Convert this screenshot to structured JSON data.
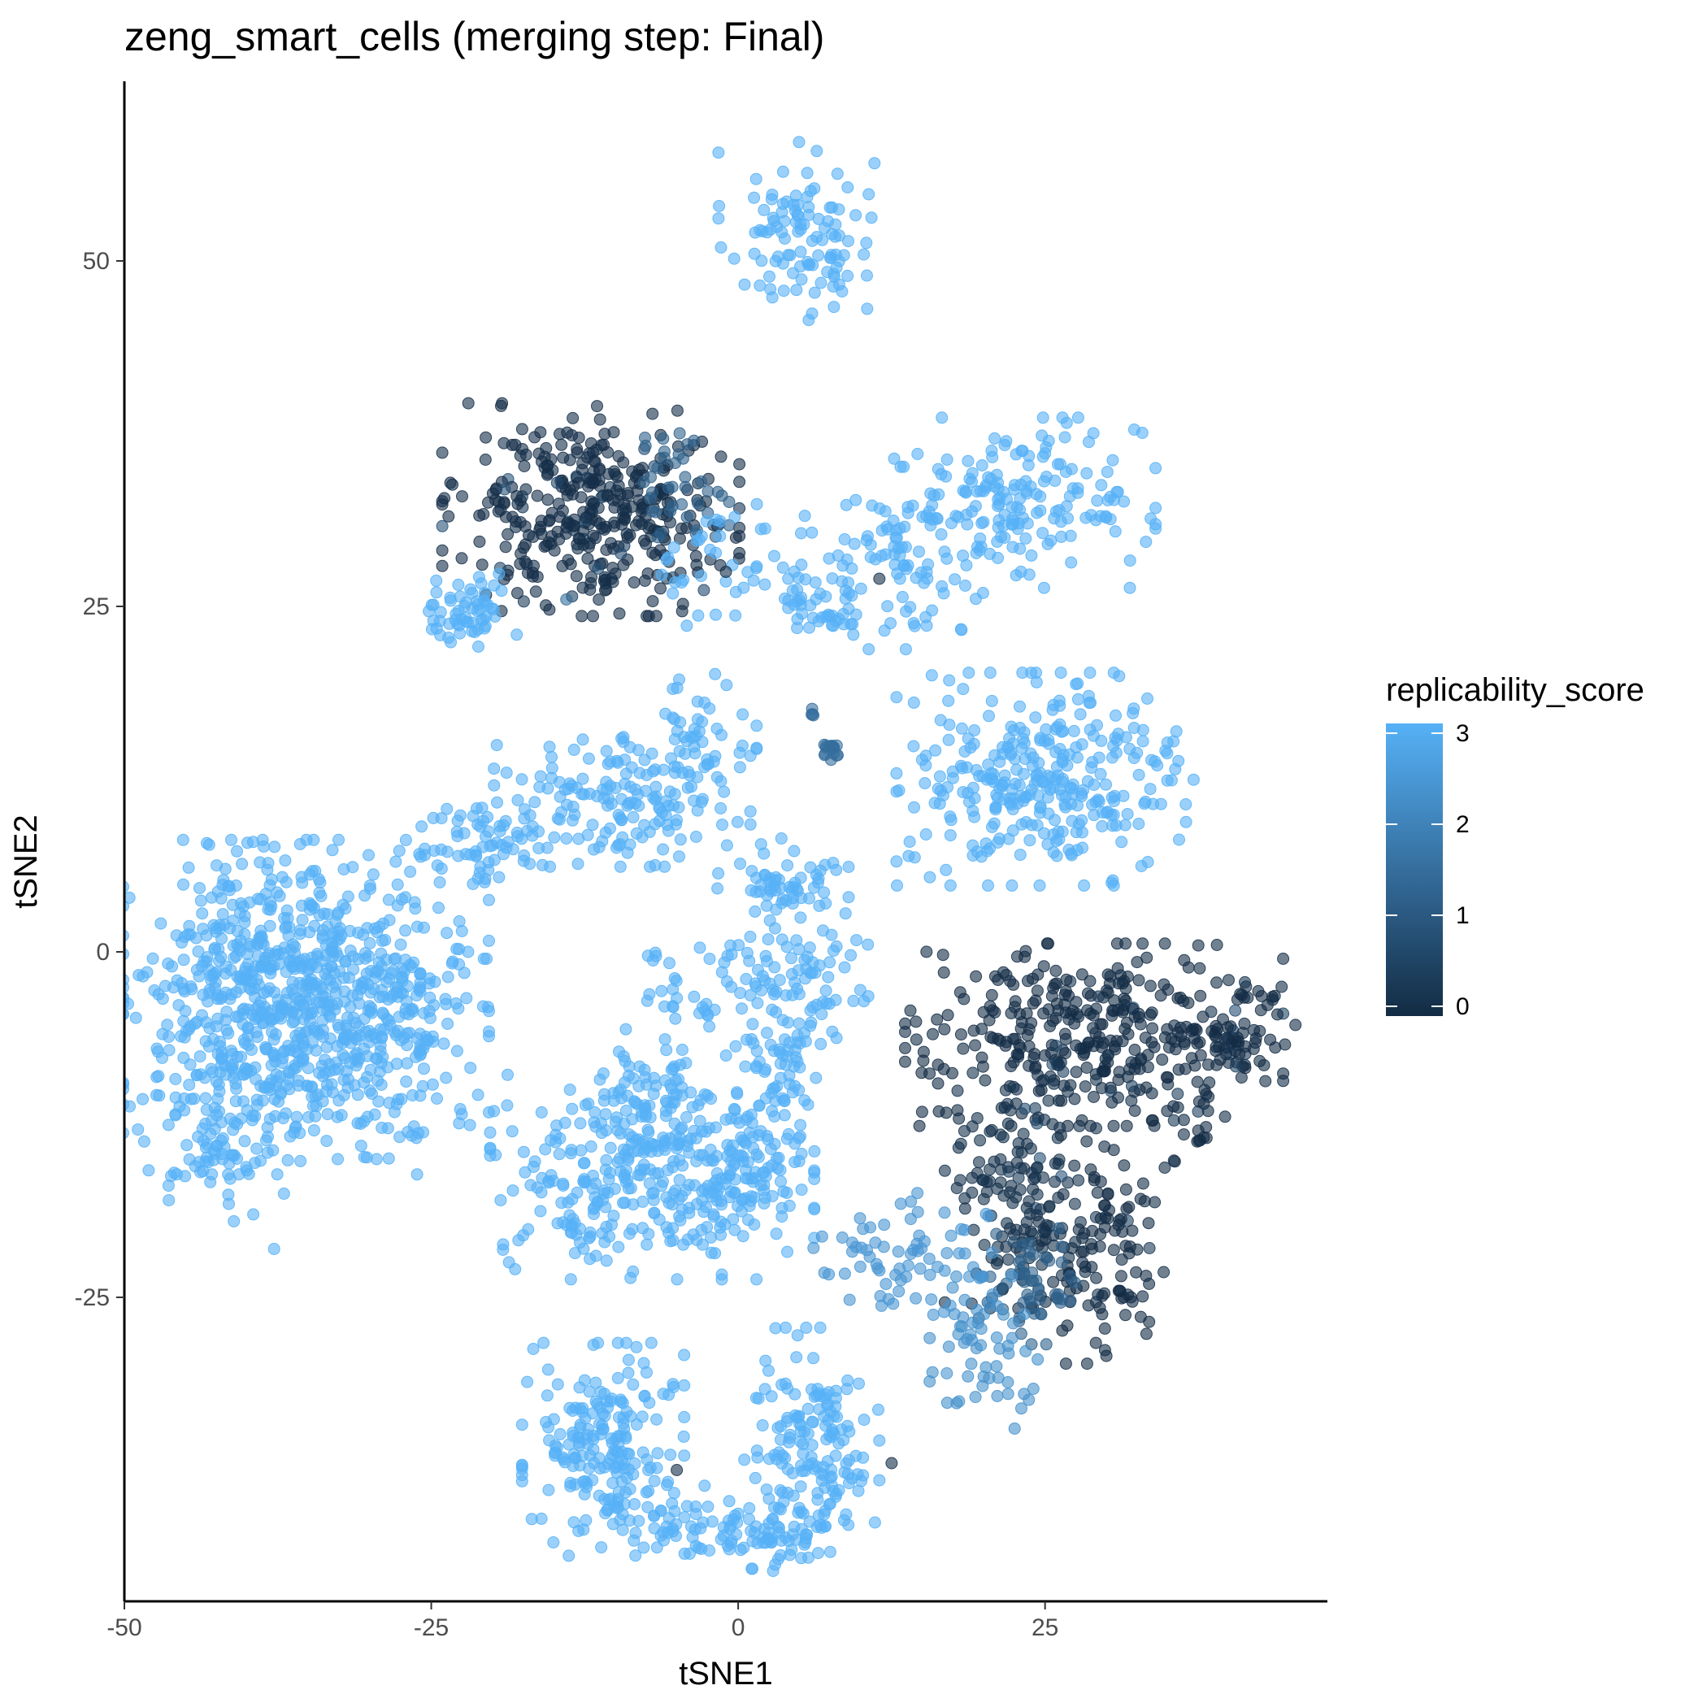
{
  "chart_data": {
    "type": "scatter",
    "title": "zeng_smart_cells (merging step: Final)",
    "xlabel": "tSNE1",
    "ylabel": "tSNE2",
    "xlim": [
      -50,
      48
    ],
    "ylim": [
      -47,
      63
    ],
    "x_ticks": [
      -50,
      -25,
      0,
      25
    ],
    "x_tick_labels": [
      "-50",
      "-25",
      "0",
      "25"
    ],
    "y_ticks": [
      -25,
      0,
      25,
      50
    ],
    "y_tick_labels": [
      "-25",
      "0",
      "25",
      "50"
    ],
    "grid": false,
    "legend": {
      "title": "replicability_score",
      "placement": "right",
      "range": [
        0,
        3
      ],
      "breaks": [
        0,
        1,
        2,
        3
      ],
      "break_labels": [
        "0",
        "1",
        "2",
        "3"
      ],
      "low_color": "#132B43",
      "high_color": "#56B1F7"
    },
    "point_opacity": 0.6,
    "clusters": [
      {
        "cx": 5,
        "cy": 52,
        "sx": 3,
        "sy": 3,
        "n": 110,
        "score": 3
      },
      {
        "cx": -12,
        "cy": 32,
        "sx": 5.5,
        "sy": 3.5,
        "n": 380,
        "score": 0.1
      },
      {
        "cx": -5,
        "cy": 34,
        "sx": 2,
        "sy": 2,
        "n": 40,
        "score": 1.2
      },
      {
        "cx": -22,
        "cy": 24.5,
        "sx": 1.8,
        "sy": 1.3,
        "n": 60,
        "score": 3
      },
      {
        "cx": 2,
        "cy": 28,
        "sx": 4,
        "sy": 2,
        "n": 60,
        "score": 3
      },
      {
        "cx": 7,
        "cy": 24.5,
        "sx": 2,
        "sy": 0.8,
        "n": 30,
        "score": 3
      },
      {
        "cx": 14,
        "cy": 28.5,
        "sx": 3.5,
        "sy": 3,
        "n": 80,
        "score": 3
      },
      {
        "cx": 23,
        "cy": 32.5,
        "sx": 5,
        "sy": 2.8,
        "n": 170,
        "score": 3
      },
      {
        "cx": 7.5,
        "cy": 14.5,
        "sx": 0.5,
        "sy": 0.4,
        "n": 16,
        "score": 1.5
      },
      {
        "cx": 6,
        "cy": 17,
        "sx": 0.4,
        "sy": 0.3,
        "n": 4,
        "score": 1.5
      },
      {
        "cx": 25,
        "cy": 12.5,
        "sx": 5.5,
        "sy": 3.5,
        "n": 320,
        "score": 3
      },
      {
        "cx": -10,
        "cy": 11,
        "sx": 5,
        "sy": 2.2,
        "n": 140,
        "score": 3
      },
      {
        "cx": -4,
        "cy": 13.5,
        "sx": 2.5,
        "sy": 3,
        "n": 70,
        "score": 3
      },
      {
        "cx": -21,
        "cy": 8,
        "sx": 3,
        "sy": 1.5,
        "n": 60,
        "score": 3
      },
      {
        "cx": -38,
        "cy": -4,
        "sx": 5.5,
        "sy": 5.5,
        "n": 700,
        "score": 3
      },
      {
        "cx": -28,
        "cy": -4,
        "sx": 3.5,
        "sy": 5,
        "n": 220,
        "score": 3
      },
      {
        "cx": -42,
        "cy": -14,
        "sx": 2,
        "sy": 2.5,
        "n": 60,
        "score": 3
      },
      {
        "cx": 3.5,
        "cy": 5,
        "sx": 2.5,
        "sy": 1.5,
        "n": 60,
        "score": 3
      },
      {
        "cx": 4,
        "cy": -2,
        "sx": 3,
        "sy": 2.5,
        "n": 90,
        "score": 3
      },
      {
        "cx": 3.5,
        "cy": -7.5,
        "sx": 1.5,
        "sy": 1.5,
        "n": 40,
        "score": 3
      },
      {
        "cx": -3,
        "cy": -3,
        "sx": 2,
        "sy": 1.5,
        "n": 25,
        "score": 3
      },
      {
        "cx": -7,
        "cy": -16,
        "sx": 6,
        "sy": 3.5,
        "n": 380,
        "score": 3
      },
      {
        "cx": -6.5,
        "cy": -10,
        "sx": 2,
        "sy": 2,
        "n": 50,
        "score": 3
      },
      {
        "cx": 1.5,
        "cy": -15,
        "sx": 2.5,
        "sy": 2,
        "n": 50,
        "score": 3
      },
      {
        "cx": -7,
        "cy": -0.5,
        "sx": 0.4,
        "sy": 0.2,
        "n": 4,
        "score": 3
      },
      {
        "cx": 29,
        "cy": -6,
        "sx": 7,
        "sy": 3,
        "n": 340,
        "score": 0.05
      },
      {
        "cx": 41,
        "cy": -5.5,
        "sx": 2,
        "sy": 1.8,
        "n": 60,
        "score": 0.05
      },
      {
        "cx": 23,
        "cy": -17,
        "sx": 2.8,
        "sy": 4,
        "n": 160,
        "score": 0.15
      },
      {
        "cx": 30,
        "cy": -21,
        "sx": 2.5,
        "sy": 4,
        "n": 110,
        "score": 0.05
      },
      {
        "cx": 24,
        "cy": -24,
        "sx": 2,
        "sy": 2,
        "n": 50,
        "score": 1.2
      },
      {
        "cx": 20,
        "cy": -29,
        "sx": 2,
        "sy": 2.5,
        "n": 60,
        "score": 2.3
      },
      {
        "cx": 13,
        "cy": -22,
        "sx": 3.5,
        "sy": 2.2,
        "n": 70,
        "score": 2.4
      },
      {
        "cx": 37,
        "cy": -12.5,
        "sx": 0.8,
        "sy": 1.5,
        "n": 15,
        "score": 0.05
      },
      {
        "cx": -11,
        "cy": -36,
        "sx": 3,
        "sy": 3.5,
        "n": 200,
        "score": 3
      },
      {
        "cx": -5,
        "cy": -41,
        "sx": 2,
        "sy": 1.2,
        "n": 40,
        "score": 3
      },
      {
        "cx": 2,
        "cy": -42,
        "sx": 2.5,
        "sy": 1.2,
        "n": 70,
        "score": 3
      },
      {
        "cx": 6,
        "cy": -36,
        "sx": 2.5,
        "sy": 4,
        "n": 160,
        "score": 3
      }
    ],
    "singles": [
      {
        "x": -37.8,
        "y": -21.5,
        "score": 3
      },
      {
        "x": -37,
        "y": -17.5,
        "score": 3
      },
      {
        "x": -39.5,
        "y": -19,
        "score": 3
      },
      {
        "x": -40.5,
        "y": 3.5,
        "score": 3
      },
      {
        "x": -42,
        "y": -15,
        "score": 3
      },
      {
        "x": -5,
        "y": -37.5,
        "score": 0.1
      },
      {
        "x": -14,
        "y": 25.5,
        "score": 1.5
      },
      {
        "x": -1,
        "y": 27.5,
        "score": 0.1
      },
      {
        "x": 11.5,
        "y": 27,
        "score": 0.1
      },
      {
        "x": 18.5,
        "y": 26.5,
        "score": 3
      },
      {
        "x": 12.5,
        "y": -37,
        "score": 0.1
      },
      {
        "x": 17,
        "y": -30.5,
        "score": 2.4
      },
      {
        "x": 38,
        "y": -10,
        "score": 0.05
      },
      {
        "x": 32,
        "y": -25,
        "score": 0.05
      },
      {
        "x": -22,
        "y": 0,
        "score": 3
      },
      {
        "x": -22.5,
        "y": 1.5,
        "score": 3
      },
      {
        "x": -20.5,
        "y": -0.5,
        "score": 3
      },
      {
        "x": -2,
        "y": -19,
        "score": 3
      },
      {
        "x": 39,
        "y": 0.5,
        "score": 0.05
      }
    ]
  }
}
